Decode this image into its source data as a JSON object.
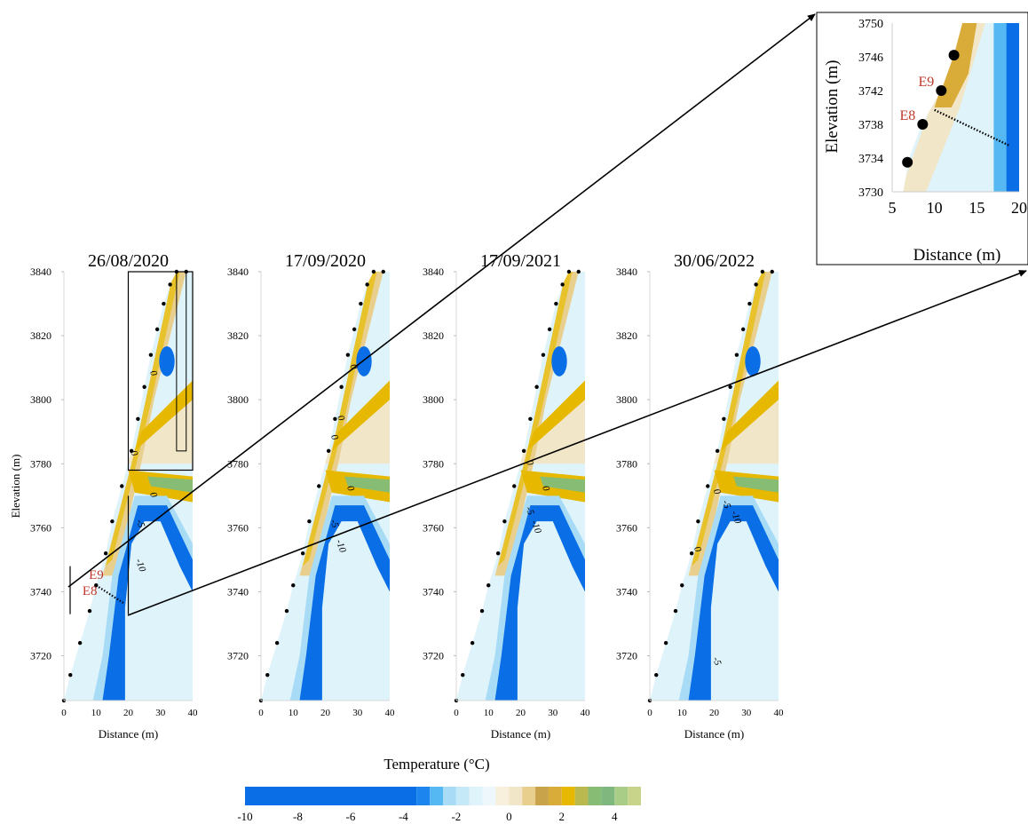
{
  "chart_data": {
    "type": "heatmap",
    "panels": [
      {
        "title": "26/08/2020",
        "xlabel": "Distance (m)",
        "ylabel": "Elevation (m)",
        "xlim": [
          0,
          40
        ],
        "ylim": [
          3706,
          3840
        ],
        "xticks": [
          0,
          10,
          20,
          30,
          40
        ],
        "yticks": [
          3720,
          3740,
          3760,
          3780,
          3800,
          3820,
          3840
        ],
        "surface": [
          [
            0,
            3706
          ],
          [
            2,
            3714
          ],
          [
            5,
            3724
          ],
          [
            8,
            3734
          ],
          [
            10,
            3742
          ],
          [
            13,
            3752
          ],
          [
            15,
            3762
          ],
          [
            18,
            3773
          ],
          [
            21,
            3784
          ],
          [
            23,
            3794
          ],
          [
            25,
            3804
          ],
          [
            27,
            3814
          ],
          [
            29,
            3822
          ],
          [
            31,
            3830
          ],
          [
            33,
            3836
          ],
          [
            35,
            3840
          ],
          [
            38,
            3840
          ]
        ],
        "contour_labels": [
          {
            "x": 27,
            "y": 3808,
            "text": "0"
          },
          {
            "x": 21,
            "y": 3783,
            "text": "0"
          },
          {
            "x": 27,
            "y": 3770,
            "text": "0"
          },
          {
            "x": 23,
            "y": 3761,
            "text": "-5"
          },
          {
            "x": 23,
            "y": 3748,
            "text": "-10"
          }
        ],
        "point_labels": [
          {
            "x": 5,
            "y": 3744,
            "text": "E9"
          },
          {
            "x": 3,
            "y": 3739,
            "text": "E8"
          }
        ]
      },
      {
        "title": "17/09/2020",
        "xlabel": "",
        "ylabel": "",
        "xlim": [
          0,
          40
        ],
        "ylim": [
          3706,
          3840
        ],
        "xticks": [
          0,
          10,
          20,
          30,
          40
        ],
        "yticks": [
          3720,
          3740,
          3760,
          3780,
          3800,
          3820,
          3840
        ],
        "surface": [
          [
            0,
            3706
          ],
          [
            2,
            3714
          ],
          [
            5,
            3724
          ],
          [
            8,
            3734
          ],
          [
            10,
            3742
          ],
          [
            13,
            3752
          ],
          [
            15,
            3762
          ],
          [
            18,
            3773
          ],
          [
            21,
            3784
          ],
          [
            23,
            3794
          ],
          [
            25,
            3804
          ],
          [
            27,
            3814
          ],
          [
            29,
            3822
          ],
          [
            31,
            3830
          ],
          [
            33,
            3836
          ],
          [
            35,
            3840
          ],
          [
            38,
            3840
          ]
        ],
        "contour_labels": [
          {
            "x": 28,
            "y": 3810,
            "text": "0"
          },
          {
            "x": 24,
            "y": 3794,
            "text": "0"
          },
          {
            "x": 22,
            "y": 3788,
            "text": "0"
          },
          {
            "x": 27,
            "y": 3772,
            "text": "0"
          },
          {
            "x": 22,
            "y": 3761,
            "text": "-5"
          },
          {
            "x": 24,
            "y": 3754,
            "text": "-10"
          }
        ],
        "point_labels": []
      },
      {
        "title": "17/09/2021",
        "xlabel": "Distance (m)",
        "ylabel": "",
        "xlim": [
          0,
          40
        ],
        "ylim": [
          3706,
          3840
        ],
        "xticks": [
          0,
          10,
          20,
          30,
          40
        ],
        "yticks": [
          3720,
          3740,
          3760,
          3780,
          3800,
          3820,
          3840
        ],
        "surface": [
          [
            0,
            3706
          ],
          [
            2,
            3714
          ],
          [
            5,
            3724
          ],
          [
            8,
            3734
          ],
          [
            10,
            3742
          ],
          [
            13,
            3752
          ],
          [
            15,
            3762
          ],
          [
            18,
            3773
          ],
          [
            21,
            3784
          ],
          [
            23,
            3794
          ],
          [
            25,
            3804
          ],
          [
            27,
            3814
          ],
          [
            29,
            3822
          ],
          [
            31,
            3830
          ],
          [
            33,
            3836
          ],
          [
            35,
            3840
          ],
          [
            38,
            3840
          ]
        ],
        "contour_labels": [
          {
            "x": 22,
            "y": 3780,
            "text": "0"
          },
          {
            "x": 27,
            "y": 3772,
            "text": "0"
          },
          {
            "x": 22,
            "y": 3765,
            "text": "-5"
          },
          {
            "x": 24,
            "y": 3760,
            "text": "-10"
          }
        ],
        "point_labels": []
      },
      {
        "title": "30/06/2022",
        "xlabel": "Distance (m)",
        "ylabel": "",
        "xlim": [
          0,
          40
        ],
        "ylim": [
          3706,
          3840
        ],
        "xticks": [
          0,
          10,
          20,
          30,
          40
        ],
        "yticks": [
          3720,
          3740,
          3760,
          3780,
          3800,
          3820,
          3840
        ],
        "surface": [
          [
            0,
            3706
          ],
          [
            2,
            3714
          ],
          [
            5,
            3724
          ],
          [
            8,
            3734
          ],
          [
            10,
            3742
          ],
          [
            13,
            3752
          ],
          [
            15,
            3762
          ],
          [
            18,
            3773
          ],
          [
            21,
            3784
          ],
          [
            23,
            3794
          ],
          [
            25,
            3804
          ],
          [
            27,
            3814
          ],
          [
            29,
            3822
          ],
          [
            31,
            3830
          ],
          [
            33,
            3836
          ],
          [
            35,
            3840
          ],
          [
            38,
            3840
          ]
        ],
        "contour_labels": [
          {
            "x": 20,
            "y": 3771,
            "text": "0"
          },
          {
            "x": 23,
            "y": 3767,
            "text": "-5"
          },
          {
            "x": 26,
            "y": 3763,
            "text": "-10"
          },
          {
            "x": 14,
            "y": 3753,
            "text": "0"
          },
          {
            "x": 20,
            "y": 3718,
            "text": "-5"
          }
        ],
        "point_labels": []
      }
    ],
    "inset": {
      "title": "",
      "xlabel": "Distance (m)",
      "ylabel": "Elevation (m)",
      "xlim": [
        5,
        20
      ],
      "ylim": [
        3730,
        3750
      ],
      "xticks": [
        5,
        10,
        15,
        20
      ],
      "yticks": [
        3730,
        3734,
        3738,
        3742,
        3746,
        3750
      ],
      "points": [
        {
          "x": 6.8,
          "y": 3733.5,
          "label": ""
        },
        {
          "x": 8.6,
          "y": 3738.0,
          "label": "E8"
        },
        {
          "x": 10.8,
          "y": 3742.0,
          "label": "E9"
        },
        {
          "x": 12.3,
          "y": 3746.2,
          "label": ""
        }
      ],
      "dotted_line": [
        [
          10.0,
          3739.7
        ],
        [
          18.8,
          3735.5
        ]
      ]
    },
    "colorbar": {
      "title": "Temperature (°C)",
      "ticks": [
        -10,
        -8,
        -6,
        -4,
        -2,
        0,
        2,
        4
      ],
      "range": [
        -10,
        5
      ]
    },
    "colors": {
      "deep_cold": "#0a6ee6",
      "cold": "#1c86ee",
      "cool": "#55b8f2",
      "light_cool": "#a8dcf6",
      "pale": "#dff3fb",
      "neutral": "#f2e6c8",
      "warm_light": "#e9cf8e",
      "warm": "#d9ac3a",
      "gold": "#e6b800",
      "yellow": "#e8c22a",
      "olive": "#b9b94f",
      "green": "#86bc73",
      "light_green": "#a9cc86",
      "highlight": "#c8d48a",
      "annotation_red": "#c0392b"
    }
  }
}
